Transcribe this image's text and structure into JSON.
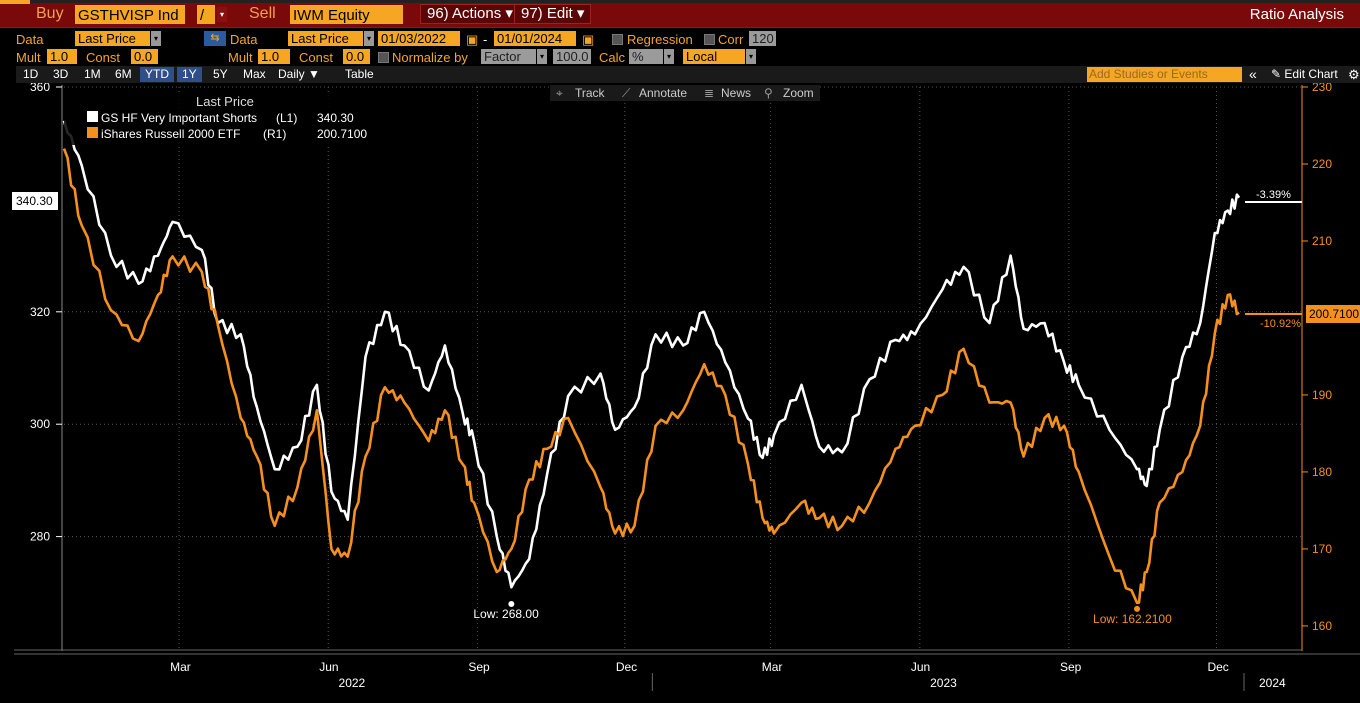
{
  "toolbar": {
    "buy": "Buy",
    "ticker": "GSTHVISP Ind",
    "op": "/",
    "sell": "Sell",
    "equity": "IWM Equity",
    "actions": "96) Actions ▾",
    "edit": "97) Edit ▾",
    "ratio": "Ratio Analysis"
  },
  "settings": {
    "data_label": "Data",
    "data1": "Last Price",
    "data2": "Last Price",
    "start_date": "01/03/2022",
    "date_sep": "-",
    "end_date": "01/01/2024",
    "regression": "Regression",
    "corr": "Corr",
    "corr_val": "120",
    "mult_label": "Mult",
    "mult1": "1.0",
    "const_label": "Const",
    "const1": "0.0",
    "mult2": "1.0",
    "const2": "0.0",
    "normalize": "Normalize by",
    "factor": "Factor",
    "factor_val": "100.0",
    "calc": "Calc",
    "calc_val": "%",
    "local": "Local"
  },
  "timebar": {
    "periods": [
      "1D",
      "3D",
      "1M",
      "6M",
      "YTD",
      "1Y",
      "5Y",
      "Max"
    ],
    "interval": "Daily ▼",
    "table": "Table",
    "add_studies": "Add Studies or Events",
    "collapse": "«",
    "edit_chart": "Edit Chart",
    "gear": "gear-icon"
  },
  "chart_tools": {
    "track": "Track",
    "annotate": "Annotate",
    "news": "News",
    "zoom": "Zoom"
  },
  "colors": {
    "series1": "#ffffff",
    "series2": "#f5901e",
    "accent": "#f5a623",
    "background": "#000000"
  },
  "chart_data": {
    "type": "line",
    "legend_title": "Last Price",
    "legend_position": "top-left",
    "grid": true,
    "x_range": [
      "2022-01-03",
      "2024-01-01"
    ],
    "x_ticks": [
      "Mar",
      "Jun",
      "Sep",
      "Dec",
      "Mar",
      "Jun",
      "Sep",
      "Dec"
    ],
    "x_years": [
      "2022",
      "2023",
      "2024"
    ],
    "y_left": {
      "ticks": [
        "360",
        "320",
        "300",
        "280"
      ],
      "range": [
        260,
        360
      ]
    },
    "y_right": {
      "ticks": [
        "230",
        "220",
        "210",
        "190",
        "180",
        "170",
        "160"
      ],
      "range": [
        157,
        230
      ]
    },
    "series": [
      {
        "name": "GS HF Very Important Shorts",
        "axis_tag": "(L1)",
        "last": "340.30",
        "last_badge": "340.30",
        "change": "-3.39%",
        "low_label": "Low: 268.00",
        "x": [
          "2022-01-03",
          "2022-01-14",
          "2022-02-01",
          "2022-02-18",
          "2022-03-02",
          "2022-03-11",
          "2022-03-29",
          "2022-04-08",
          "2022-04-22",
          "2022-05-02",
          "2022-05-13",
          "2022-05-27",
          "2022-06-08",
          "2022-06-17",
          "2022-06-27",
          "2022-07-08",
          "2022-07-20",
          "2022-08-01",
          "2022-08-16",
          "2022-08-26",
          "2022-09-06",
          "2022-09-13",
          "2022-09-27",
          "2022-10-06",
          "2022-10-17",
          "2022-10-28",
          "2022-11-10",
          "2022-11-30",
          "2022-12-09",
          "2022-12-21",
          "2023-01-03",
          "2023-01-20",
          "2023-02-02",
          "2023-02-15",
          "2023-03-01",
          "2023-03-10",
          "2023-03-17",
          "2023-04-03",
          "2023-04-14",
          "2023-04-28",
          "2023-05-15",
          "2023-05-31",
          "2023-06-12",
          "2023-06-29",
          "2023-07-12",
          "2023-07-28",
          "2023-08-10",
          "2023-08-18",
          "2023-08-31",
          "2023-09-12",
          "2023-09-21",
          "2023-10-10",
          "2023-10-27",
          "2023-11-02",
          "2023-11-10",
          "2023-11-24",
          "2023-12-05",
          "2023-12-14",
          "2023-12-22",
          "2023-12-29"
        ],
        "values": [
          354,
          346,
          330,
          325,
          330,
          336,
          331,
          318,
          316,
          303,
          292,
          296,
          307,
          288,
          283,
          312,
          320,
          314,
          306,
          314,
          302,
          297,
          280,
          271,
          276,
          291,
          305,
          309,
          299,
          303,
          316,
          314,
          320,
          311,
          301,
          294,
          298,
          307,
          296,
          295,
          308,
          315,
          316,
          324,
          328,
          318,
          330,
          317,
          318,
          311,
          307,
          299,
          292,
          289,
          299,
          312,
          318,
          334,
          338,
          340.3
        ]
      },
      {
        "name": "iShares Russell 2000 ETF",
        "axis_tag": "(R1)",
        "last": "200.7100",
        "last_badge": "200.7100",
        "change": "-10.92%",
        "low_label": "Low: 162.2100",
        "x": [
          "2022-01-03",
          "2022-01-14",
          "2022-02-01",
          "2022-02-18",
          "2022-03-02",
          "2022-03-11",
          "2022-03-29",
          "2022-04-08",
          "2022-04-22",
          "2022-05-02",
          "2022-05-13",
          "2022-05-27",
          "2022-06-08",
          "2022-06-17",
          "2022-06-27",
          "2022-07-08",
          "2022-07-20",
          "2022-08-01",
          "2022-08-16",
          "2022-08-26",
          "2022-09-06",
          "2022-09-13",
          "2022-09-27",
          "2022-10-06",
          "2022-10-17",
          "2022-10-28",
          "2022-11-10",
          "2022-11-30",
          "2022-12-09",
          "2022-12-21",
          "2023-01-03",
          "2023-01-20",
          "2023-02-02",
          "2023-02-15",
          "2023-03-01",
          "2023-03-10",
          "2023-03-17",
          "2023-04-03",
          "2023-04-14",
          "2023-04-28",
          "2023-05-15",
          "2023-05-31",
          "2023-06-12",
          "2023-06-29",
          "2023-07-12",
          "2023-07-28",
          "2023-08-10",
          "2023-08-18",
          "2023-08-31",
          "2023-09-12",
          "2023-09-21",
          "2023-10-10",
          "2023-10-27",
          "2023-11-02",
          "2023-11-10",
          "2023-11-24",
          "2023-12-05",
          "2023-12-14",
          "2023-12-22",
          "2023-12-29"
        ],
        "values": [
          222,
          212,
          201,
          197,
          203,
          208,
          206,
          199,
          187,
          182,
          173,
          178,
          188,
          170,
          169,
          182,
          191,
          189,
          184,
          188,
          181,
          176,
          167,
          170,
          179,
          183,
          187,
          178,
          172,
          173,
          186,
          188,
          194,
          190,
          181,
          174,
          172,
          176,
          174,
          173,
          176,
          183,
          186,
          190,
          196,
          189,
          189,
          182,
          187,
          186,
          180,
          169,
          163,
          167,
          176,
          180,
          186,
          198,
          203,
          200.71
        ]
      }
    ]
  }
}
